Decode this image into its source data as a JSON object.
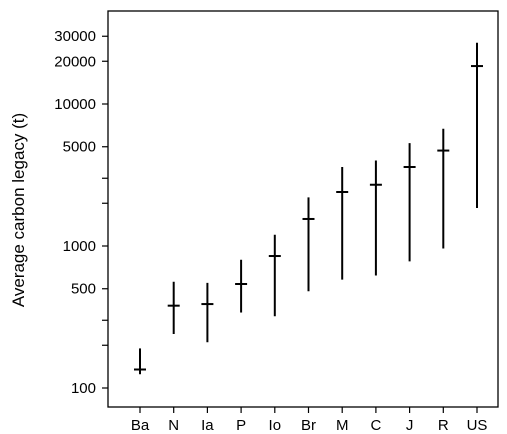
{
  "chart_data": {
    "type": "range",
    "title": "",
    "xlabel": "",
    "ylabel": "Average carbon legacy (t)",
    "yscale": "log",
    "ylim": [
      75,
      45000
    ],
    "yticks": [
      {
        "value": 100,
        "label": "100"
      },
      {
        "value": 200,
        "label": ""
      },
      {
        "value": 300,
        "label": ""
      },
      {
        "value": 500,
        "label": "500"
      },
      {
        "value": 1000,
        "label": "1000"
      },
      {
        "value": 2000,
        "label": ""
      },
      {
        "value": 3000,
        "label": ""
      },
      {
        "value": 5000,
        "label": "5000"
      },
      {
        "value": 10000,
        "label": "10000"
      },
      {
        "value": 20000,
        "label": "20000"
      },
      {
        "value": 30000,
        "label": "30000"
      }
    ],
    "categories": [
      "Ba",
      "N",
      "Ia",
      "P",
      "Io",
      "Br",
      "M",
      "C",
      "J",
      "R",
      "US"
    ],
    "low": [
      125,
      240,
      210,
      340,
      320,
      480,
      580,
      620,
      780,
      960,
      1850
    ],
    "mid": [
      135,
      380,
      390,
      540,
      850,
      1550,
      2400,
      2700,
      3600,
      4700,
      18500
    ],
    "high": [
      190,
      560,
      550,
      800,
      1200,
      2200,
      3600,
      4000,
      5300,
      6700,
      27000
    ],
    "grid": false,
    "legend": "none"
  }
}
